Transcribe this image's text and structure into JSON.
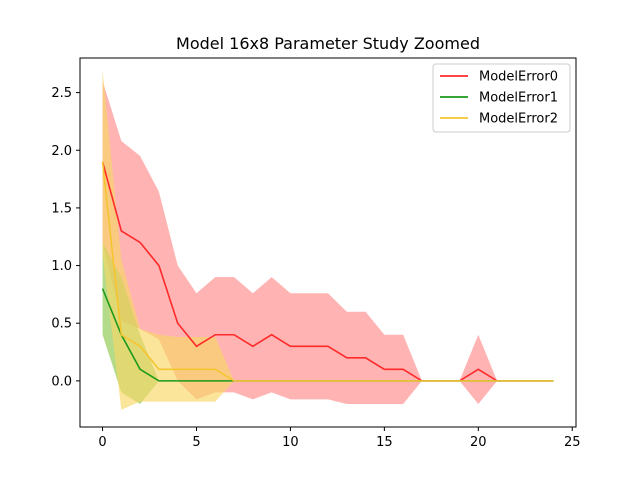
{
  "chart_data": {
    "type": "line",
    "title": "Model 16x8 Parameter Study Zoomed",
    "xlabel": "",
    "ylabel": "",
    "xlim": [
      -1.2,
      25.2
    ],
    "ylim": [
      -0.4,
      2.8
    ],
    "xticks": [
      0,
      5,
      10,
      15,
      20,
      25
    ],
    "yticks": [
      0.0,
      0.5,
      1.0,
      1.5,
      2.0,
      2.5
    ],
    "xtick_labels": [
      "0",
      "5",
      "10",
      "15",
      "20",
      "25"
    ],
    "ytick_labels": [
      "0.0",
      "0.5",
      "1.0",
      "1.5",
      "2.0",
      "2.5"
    ],
    "legend_position": "top-right",
    "x": [
      0,
      1,
      2,
      3,
      4,
      5,
      6,
      7,
      8,
      9,
      10,
      11,
      12,
      13,
      14,
      15,
      16,
      17,
      18,
      19,
      20,
      21,
      22,
      23,
      24
    ],
    "series": [
      {
        "name": "ModelError0",
        "color": "#ff2a2a",
        "fill_color": "#ff8a8a",
        "values": [
          1.9,
          1.3,
          1.2,
          1.0,
          0.5,
          0.3,
          0.4,
          0.4,
          0.3,
          0.4,
          0.3,
          0.3,
          0.3,
          0.2,
          0.2,
          0.1,
          0.1,
          0.0,
          0.0,
          0.0,
          0.1,
          0.0,
          0.0,
          0.0,
          0.0
        ],
        "upper": [
          2.6,
          2.08,
          1.95,
          1.64,
          1.0,
          0.76,
          0.9,
          0.9,
          0.76,
          0.9,
          0.76,
          0.76,
          0.76,
          0.6,
          0.6,
          0.4,
          0.4,
          0.0,
          0.0,
          0.0,
          0.4,
          0.0,
          0.0,
          0.0,
          0.0
        ],
        "lower": [
          1.2,
          0.52,
          0.45,
          0.36,
          0.0,
          -0.16,
          -0.1,
          -0.1,
          -0.16,
          -0.1,
          -0.16,
          -0.16,
          -0.16,
          -0.2,
          -0.2,
          -0.2,
          -0.2,
          0.0,
          0.0,
          0.0,
          -0.2,
          0.0,
          0.0,
          0.0,
          0.0
        ]
      },
      {
        "name": "ModelError1",
        "color": "#1a9a1a",
        "fill_color": "#8cc84b",
        "values": [
          0.8,
          0.4,
          0.1,
          0.0,
          0.0,
          0.0,
          0.0,
          0.0,
          0.0,
          0.0,
          0.0,
          0.0,
          0.0,
          0.0,
          0.0,
          0.0,
          0.0,
          0.0,
          0.0,
          0.0,
          0.0,
          0.0,
          0.0,
          0.0,
          0.0
        ],
        "upper": [
          1.2,
          0.9,
          0.4,
          0.0,
          0.0,
          0.0,
          0.0,
          0.0,
          0.0,
          0.0,
          0.0,
          0.0,
          0.0,
          0.0,
          0.0,
          0.0,
          0.0,
          0.0,
          0.0,
          0.0,
          0.0,
          0.0,
          0.0,
          0.0,
          0.0
        ],
        "lower": [
          0.4,
          -0.1,
          -0.2,
          0.0,
          0.0,
          0.0,
          0.0,
          0.0,
          0.0,
          0.0,
          0.0,
          0.0,
          0.0,
          0.0,
          0.0,
          0.0,
          0.0,
          0.0,
          0.0,
          0.0,
          0.0,
          0.0,
          0.0,
          0.0,
          0.0
        ]
      },
      {
        "name": "ModelError2",
        "color": "#f5c531",
        "fill_color": "#f7d765",
        "values": [
          1.9,
          0.4,
          0.3,
          0.1,
          0.1,
          0.1,
          0.1,
          0.0,
          0.0,
          0.0,
          0.0,
          0.0,
          0.0,
          0.0,
          0.0,
          0.0,
          0.0,
          0.0,
          0.0,
          0.0,
          0.0,
          0.0,
          0.0,
          0.0,
          0.0
        ],
        "upper": [
          2.7,
          1.05,
          0.45,
          0.4,
          0.38,
          0.38,
          0.38,
          0.0,
          0.0,
          0.0,
          0.0,
          0.0,
          0.0,
          0.0,
          0.0,
          0.0,
          0.0,
          0.0,
          0.0,
          0.0,
          0.0,
          0.0,
          0.0,
          0.0,
          0.0
        ],
        "lower": [
          1.1,
          -0.25,
          -0.18,
          -0.18,
          -0.18,
          -0.18,
          -0.18,
          0.0,
          0.0,
          0.0,
          0.0,
          0.0,
          0.0,
          0.0,
          0.0,
          0.0,
          0.0,
          0.0,
          0.0,
          0.0,
          0.0,
          0.0,
          0.0,
          0.0,
          0.0
        ]
      }
    ]
  }
}
